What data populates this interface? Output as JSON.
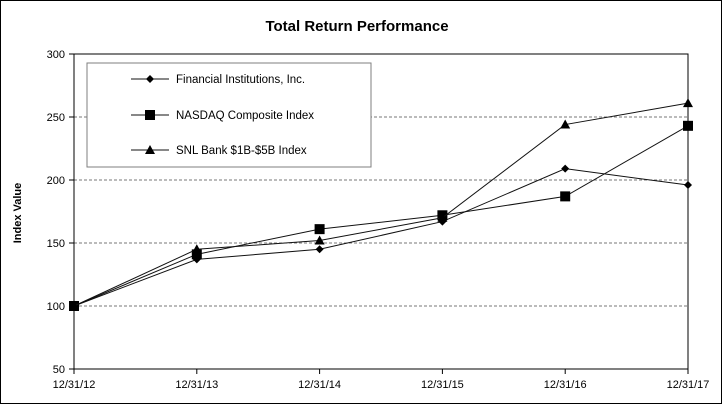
{
  "chart_data": {
    "type": "line",
    "title": "Total Return Performance",
    "xlabel": "",
    "ylabel": "Index Value",
    "categories": [
      "12/31/12",
      "12/31/13",
      "12/31/14",
      "12/31/15",
      "12/31/16",
      "12/31/17"
    ],
    "ylim": [
      50,
      300
    ],
    "yticks": [
      "50",
      "100",
      "150",
      "200",
      "250",
      "300"
    ],
    "grid": true,
    "legend_position": "top-left",
    "series": [
      {
        "name": "Financial Institutions, Inc.",
        "marker": "diamond",
        "values": [
          100,
          137,
          145,
          167,
          209,
          196
        ]
      },
      {
        "name": "NASDAQ Composite Index",
        "marker": "square",
        "values": [
          100,
          141,
          161,
          172,
          187,
          243
        ]
      },
      {
        "name": "SNL Bank $1B-$5B Index",
        "marker": "triangle",
        "values": [
          100,
          145,
          152,
          170,
          244,
          261
        ]
      }
    ]
  }
}
